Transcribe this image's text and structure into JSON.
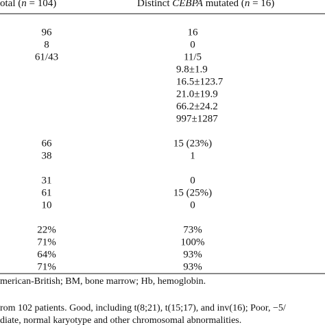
{
  "header": {
    "col1": [
      "otal (",
      "n",
      " = 104)"
    ],
    "col2": [
      "Distinct ",
      "CEBPA",
      " mutated (",
      "n",
      " = 16)"
    ]
  },
  "groups": [
    [
      [
        "96",
        "16"
      ],
      [
        "8",
        "0"
      ],
      [
        "61/43",
        "11/5"
      ],
      [
        null,
        "9.8±1.9"
      ],
      [
        null,
        "16.5±123.7"
      ],
      [
        null,
        "21.0±19.9"
      ],
      [
        null,
        "66.2±24.2"
      ],
      [
        null,
        "997±1287"
      ]
    ],
    [
      [
        "66",
        "15 (23%)"
      ],
      [
        "38",
        "1"
      ]
    ],
    [
      [
        "31",
        "0"
      ],
      [
        "61",
        "15 (25%)"
      ],
      [
        "10",
        "0"
      ]
    ],
    [
      [
        "22%",
        "73%"
      ],
      [
        "71%",
        "100%"
      ],
      [
        "64%",
        "93%"
      ],
      [
        "71%",
        "93%"
      ]
    ]
  ],
  "footnotes": [
    "merican-British; BM, bone marrow; Hb, hemoglobin.",
    "rom 102 patients. Good, including t(8;21), t(15;17), and inv(16); Poor, −5/",
    "diate, normal karyotype and other chromosomal abnormalities."
  ]
}
